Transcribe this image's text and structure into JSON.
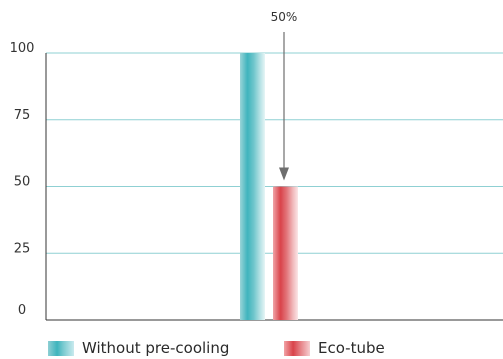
{
  "chart_data": {
    "type": "bar",
    "categories": [
      ""
    ],
    "series": [
      {
        "name": "Without pre-cooling",
        "values": [
          100
        ],
        "color": "#3fb4bd"
      },
      {
        "name": "Eco-tube",
        "values": [
          50
        ],
        "color": "#d9434a"
      }
    ],
    "ylim": [
      0,
      100
    ],
    "yticks": [
      0,
      25,
      50,
      75,
      100
    ],
    "grid": true,
    "legend_position": "bottom-left",
    "annotation": {
      "text": "50%",
      "target_series": "Eco-tube",
      "arrow": "down"
    }
  }
}
